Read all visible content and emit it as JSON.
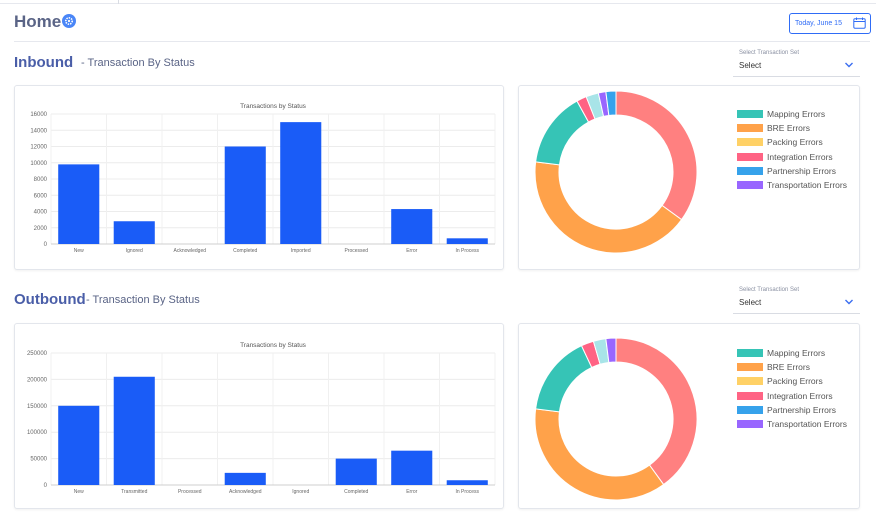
{
  "header": {
    "title": "Home",
    "date_label": "Today, June 15"
  },
  "sections": [
    {
      "id": "inbound",
      "title": "Inbound",
      "subtitle": "- Transaction By Status",
      "select": {
        "label": "Select Transaction Set",
        "value": "Select"
      }
    },
    {
      "id": "outbound",
      "title": "Outbound",
      "subtitle": "- Transaction By Status",
      "select": {
        "label": "Select Transaction Set",
        "value": "Select"
      }
    }
  ],
  "chart_data": [
    {
      "type": "bar",
      "title": "Transactions by Status",
      "categories": [
        "New",
        "Ignored",
        "Acknowledged",
        "Completed",
        "Imported",
        "Processed",
        "Error",
        "In Process"
      ],
      "values": [
        9800,
        2800,
        0,
        12000,
        15000,
        0,
        4300,
        700
      ],
      "ylim": [
        0,
        16000
      ],
      "yticks": [
        "0",
        "2000",
        "4000",
        "6000",
        "8000",
        "10000",
        "12000",
        "14000",
        "16000"
      ],
      "grid": true,
      "color": "#1a5cf7"
    },
    {
      "type": "pie",
      "labels": [
        "Mapping Errors",
        "BRE Errors",
        "Packing Errors",
        "Integration Errors",
        "Partnership Errors",
        "Transportation Errors"
      ],
      "colors": [
        "#36c4b6",
        "#ffa24a",
        "#ffd166",
        "#ff6384",
        "#36a2eb",
        "#9966ff"
      ],
      "segments": [
        {
          "color": "#ff8080",
          "value": 35
        },
        {
          "color": "#ffa24a",
          "value": 42
        },
        {
          "color": "#36c4b6",
          "value": 15
        },
        {
          "color": "#ff6384",
          "value": 2
        },
        {
          "color": "#a8e4e8",
          "value": 2.5
        },
        {
          "color": "#9966ff",
          "value": 1.5
        },
        {
          "color": "#36a2eb",
          "value": 2
        }
      ],
      "legend": "right"
    },
    {
      "type": "bar",
      "title": "Transactions by Status",
      "categories": [
        "New",
        "Transmitted",
        "Processed",
        "Acknowledged",
        "Ignored",
        "Completed",
        "Error",
        "In Process"
      ],
      "values": [
        150000,
        205000,
        0,
        23000,
        0,
        50000,
        65000,
        9000
      ],
      "ylim": [
        0,
        250000
      ],
      "yticks": [
        "0",
        "50000",
        "100000",
        "150000",
        "200000",
        "250000"
      ],
      "grid": true,
      "color": "#1a5cf7"
    },
    {
      "type": "pie",
      "labels": [
        "Mapping Errors",
        "BRE Errors",
        "Packing Errors",
        "Integration Errors",
        "Partnership Errors",
        "Transportation Errors"
      ],
      "colors": [
        "#36c4b6",
        "#ffa24a",
        "#ffd166",
        "#ff6384",
        "#36a2eb",
        "#9966ff"
      ],
      "segments": [
        {
          "color": "#ff8080",
          "value": 40
        },
        {
          "color": "#ffa24a",
          "value": 37
        },
        {
          "color": "#36c4b6",
          "value": 16
        },
        {
          "color": "#ff6384",
          "value": 2.5
        },
        {
          "color": "#a8e4e8",
          "value": 2.5
        },
        {
          "color": "#9966ff",
          "value": 2
        }
      ],
      "legend": "right"
    }
  ]
}
